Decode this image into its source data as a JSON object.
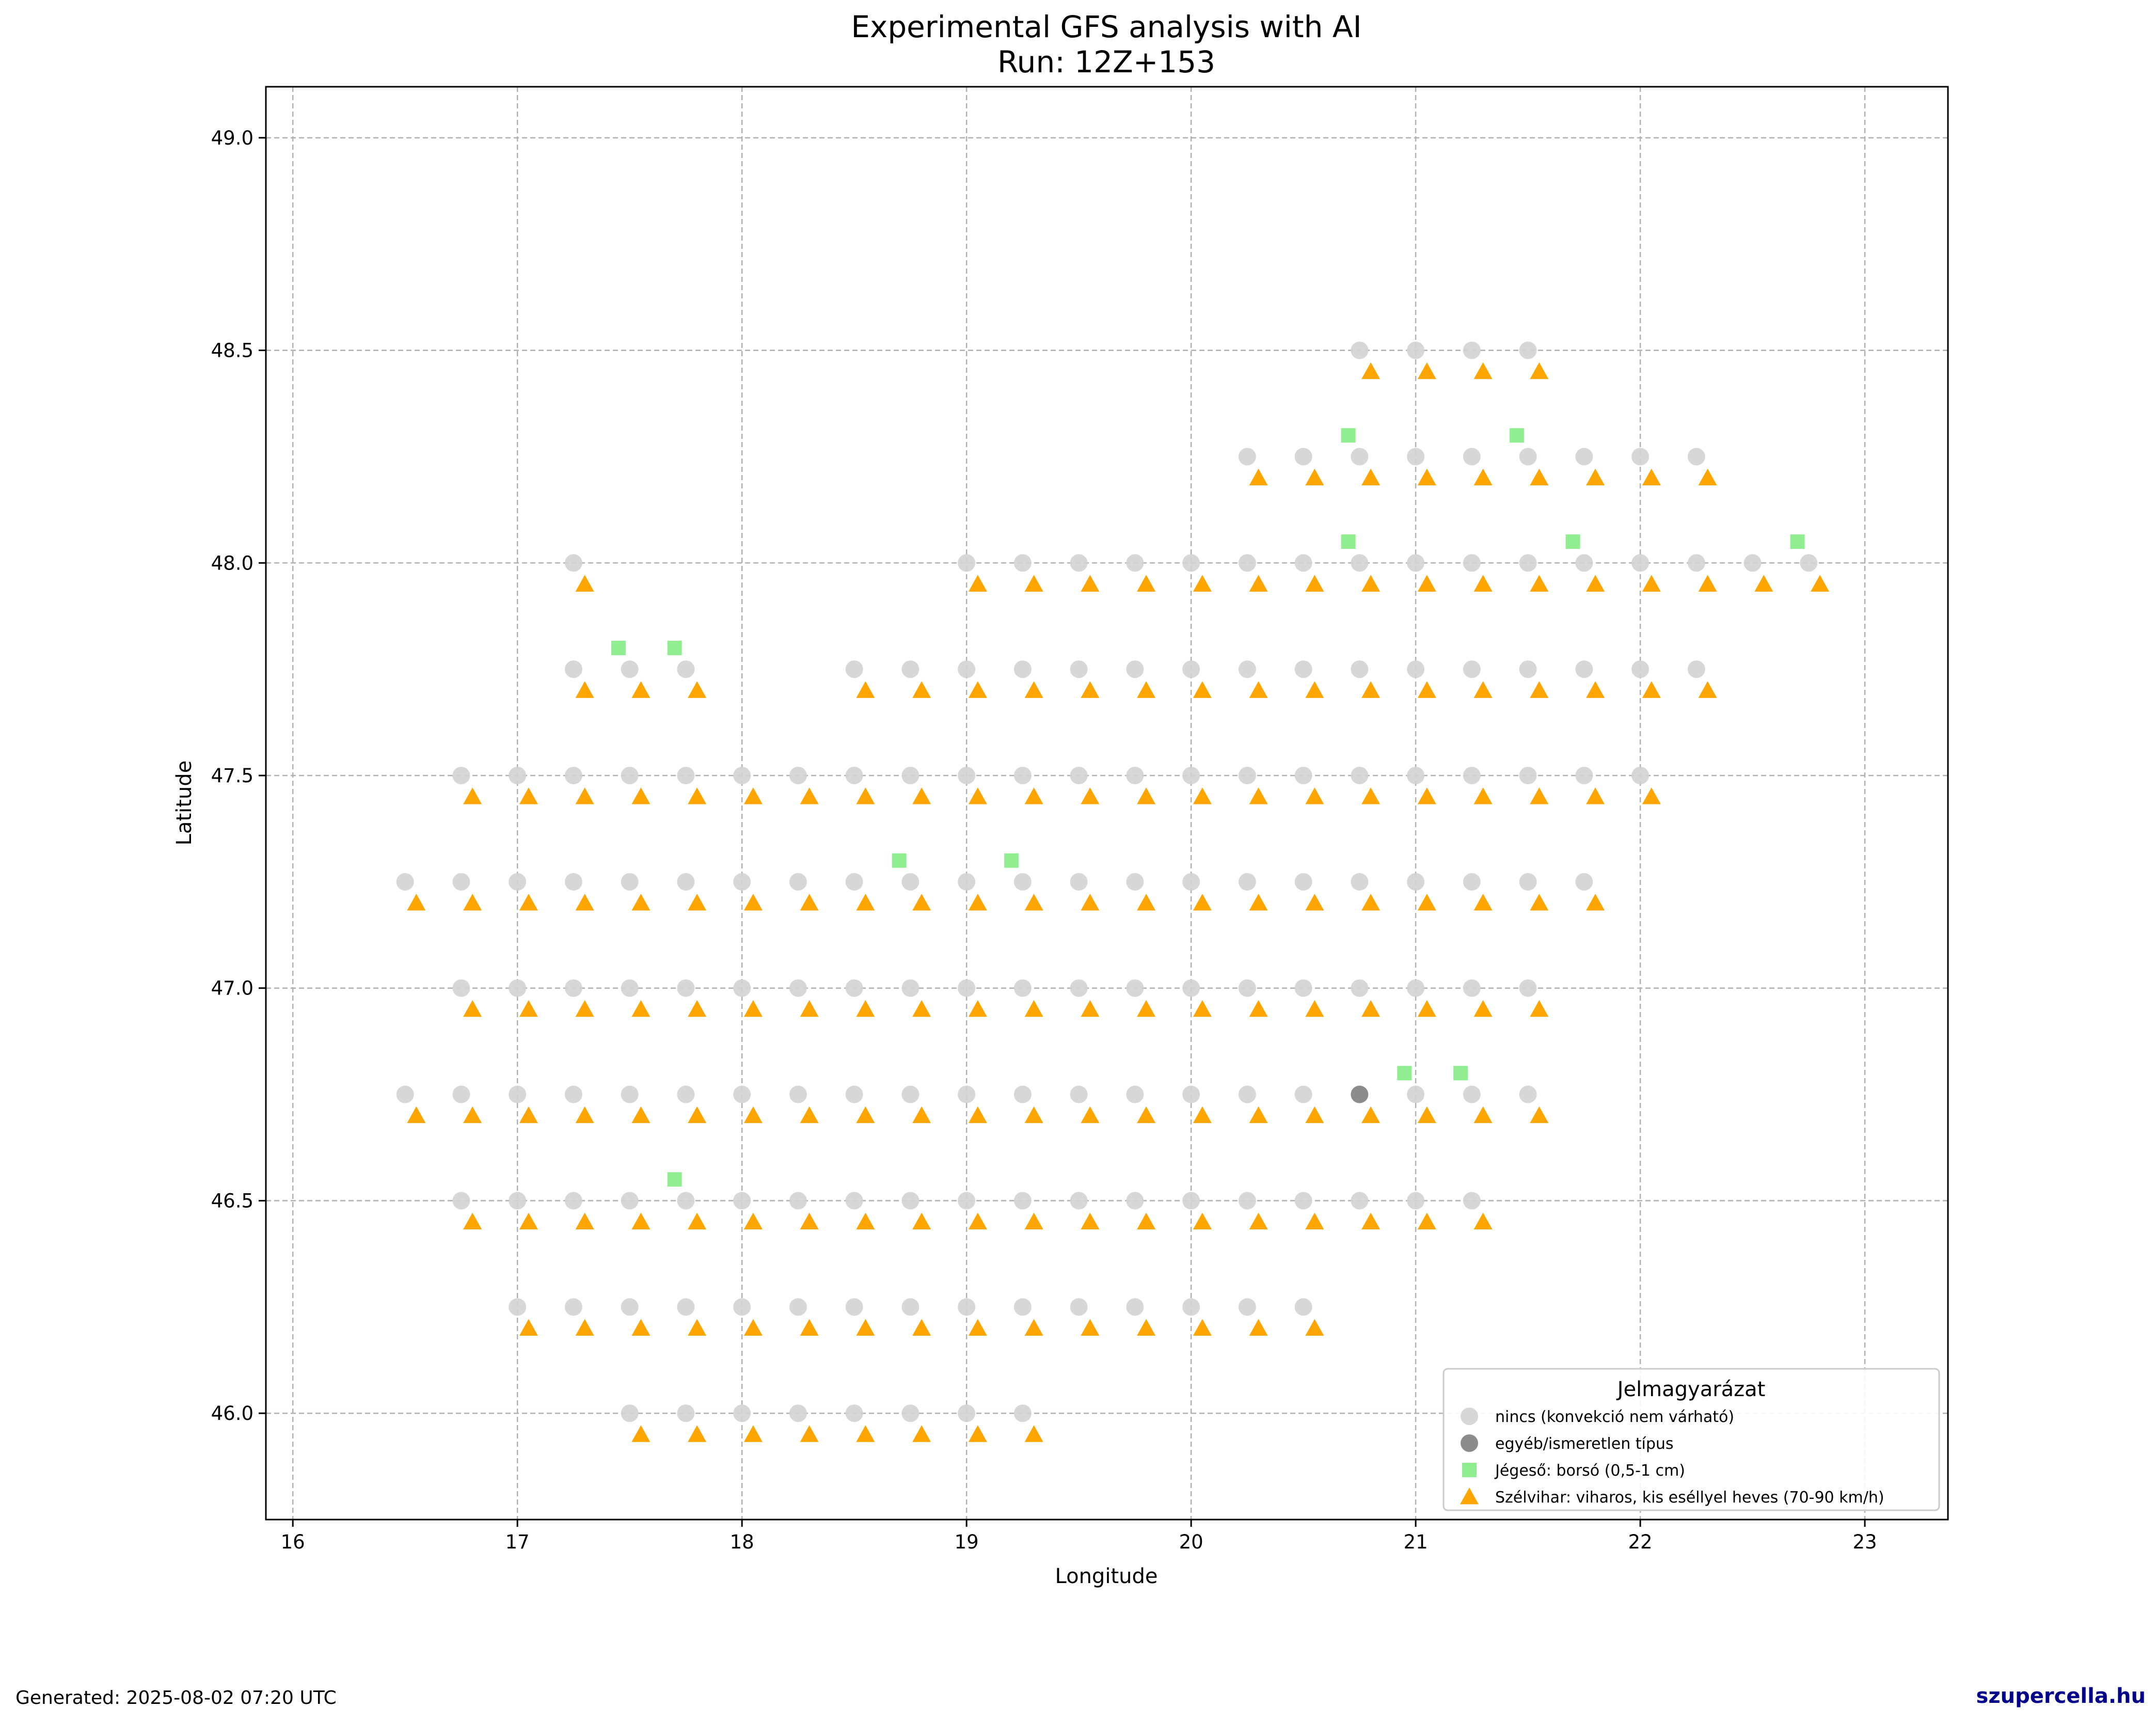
{
  "footer": {
    "generated": "Generated: 2025-08-02 07:20 UTC",
    "brand": "szupercella.hu"
  },
  "chart_data": {
    "type": "scatter",
    "title": "Experimental GFS analysis with AI",
    "subtitle": "Run: 12Z+153",
    "xlabel": "Longitude",
    "ylabel": "Latitude",
    "xlim": [
      15.88,
      23.37
    ],
    "ylim": [
      45.75,
      49.12
    ],
    "xticks": [
      "16",
      "17",
      "18",
      "19",
      "20",
      "21",
      "22",
      "23"
    ],
    "yticks": [
      "46.0",
      "46.5",
      "47.0",
      "47.5",
      "48.0",
      "48.5",
      "49.0"
    ],
    "grid": true,
    "legend": {
      "title": "Jelmagyarázat",
      "placement": "lower-right"
    },
    "colors": {
      "nincs": "#d3d3d3",
      "egyeb": "#808080",
      "jeges": "#90ee90",
      "szel": "#ffa500"
    },
    "series": [
      {
        "key": "nincs",
        "name": "nincs (konvekció nem várható)",
        "marker": "circle",
        "rows": [
          {
            "lat": 48.5,
            "lons": [
              20.75,
              21.0,
              21.25,
              21.5
            ]
          },
          {
            "lat": 48.25,
            "lons": [
              20.25,
              20.5,
              20.75,
              21.0,
              21.25,
              21.5,
              21.75,
              22.0,
              22.25
            ]
          },
          {
            "lat": 48.0,
            "lons": [
              17.25,
              19.0,
              19.25,
              19.5,
              19.75,
              20.0,
              20.25,
              20.5,
              20.75,
              21.0,
              21.25,
              21.5,
              21.75,
              22.0,
              22.25,
              22.5,
              22.75
            ]
          },
          {
            "lat": 47.75,
            "lons": [
              17.25,
              17.5,
              17.75,
              18.5,
              18.75,
              19.0,
              19.25,
              19.5,
              19.75,
              20.0,
              20.25,
              20.5,
              20.75,
              21.0,
              21.25,
              21.5,
              21.75,
              22.0,
              22.25
            ]
          },
          {
            "lat": 47.5,
            "lons": [
              16.75,
              17.0,
              17.25,
              17.5,
              17.75,
              18.0,
              18.25,
              18.5,
              18.75,
              19.0,
              19.25,
              19.5,
              19.75,
              20.0,
              20.25,
              20.5,
              20.75,
              21.0,
              21.25,
              21.5,
              21.75,
              22.0
            ]
          },
          {
            "lat": 47.25,
            "lons": [
              16.5,
              16.75,
              17.0,
              17.25,
              17.5,
              17.75,
              18.0,
              18.25,
              18.5,
              18.75,
              19.0,
              19.25,
              19.5,
              19.75,
              20.0,
              20.25,
              20.5,
              20.75,
              21.0,
              21.25,
              21.5,
              21.75
            ]
          },
          {
            "lat": 47.0,
            "lons": [
              16.75,
              17.0,
              17.25,
              17.5,
              17.75,
              18.0,
              18.25,
              18.5,
              18.75,
              19.0,
              19.25,
              19.5,
              19.75,
              20.0,
              20.25,
              20.5,
              20.75,
              21.0,
              21.25,
              21.5
            ]
          },
          {
            "lat": 46.75,
            "lons": [
              16.5,
              16.75,
              17.0,
              17.25,
              17.5,
              17.75,
              18.0,
              18.25,
              18.5,
              18.75,
              19.0,
              19.25,
              19.5,
              19.75,
              20.0,
              20.25,
              20.5,
              21.0,
              21.25,
              21.5
            ]
          },
          {
            "lat": 46.5,
            "lons": [
              16.75,
              17.0,
              17.25,
              17.5,
              17.75,
              18.0,
              18.25,
              18.5,
              18.75,
              19.0,
              19.25,
              19.5,
              19.75,
              20.0,
              20.25,
              20.5,
              20.75,
              21.0,
              21.25
            ]
          },
          {
            "lat": 46.25,
            "lons": [
              17.0,
              17.25,
              17.5,
              17.75,
              18.0,
              18.25,
              18.5,
              18.75,
              19.0,
              19.25,
              19.5,
              19.75,
              20.0,
              20.25,
              20.5
            ]
          },
          {
            "lat": 46.0,
            "lons": [
              17.5,
              17.75,
              18.0,
              18.25,
              18.5,
              18.75,
              19.0,
              19.25
            ]
          }
        ]
      },
      {
        "key": "egyeb",
        "name": "egyéb/ismeretlen típus",
        "marker": "circle",
        "rows": [
          {
            "lat": 46.75,
            "lons": [
              20.75
            ]
          }
        ]
      },
      {
        "key": "jeges",
        "name": "Jégeső: borsó (0,5-1 cm)",
        "marker": "square",
        "rows": [
          {
            "lat": 48.3,
            "lons": [
              20.7,
              21.45
            ]
          },
          {
            "lat": 48.05,
            "lons": [
              20.7,
              21.7,
              22.7
            ]
          },
          {
            "lat": 47.8,
            "lons": [
              17.45,
              17.7
            ]
          },
          {
            "lat": 47.3,
            "lons": [
              18.7,
              19.2
            ]
          },
          {
            "lat": 46.8,
            "lons": [
              20.95,
              21.2
            ]
          },
          {
            "lat": 46.55,
            "lons": [
              17.7
            ]
          }
        ]
      },
      {
        "key": "szel",
        "name": "Szélvihar: viharos, kis eséllyel heves (70-90 km/h)",
        "marker": "triangle",
        "rows": [
          {
            "lat": 48.45,
            "lons": [
              20.8,
              21.05,
              21.3,
              21.55
            ]
          },
          {
            "lat": 48.2,
            "lons": [
              20.3,
              20.55,
              20.8,
              21.05,
              21.3,
              21.55,
              21.8,
              22.05,
              22.3
            ]
          },
          {
            "lat": 47.95,
            "lons": [
              17.3,
              19.05,
              19.3,
              19.55,
              19.8,
              20.05,
              20.3,
              20.55,
              20.8,
              21.05,
              21.3,
              21.55,
              21.8,
              22.05,
              22.3,
              22.55,
              22.8
            ]
          },
          {
            "lat": 47.7,
            "lons": [
              17.3,
              17.55,
              17.8,
              18.55,
              18.8,
              19.05,
              19.3,
              19.55,
              19.8,
              20.05,
              20.3,
              20.55,
              20.8,
              21.05,
              21.3,
              21.55,
              21.8,
              22.05,
              22.3
            ]
          },
          {
            "lat": 47.45,
            "lons": [
              16.8,
              17.05,
              17.3,
              17.55,
              17.8,
              18.05,
              18.3,
              18.55,
              18.8,
              19.05,
              19.3,
              19.55,
              19.8,
              20.05,
              20.3,
              20.55,
              20.8,
              21.05,
              21.3,
              21.55,
              21.8,
              22.05
            ]
          },
          {
            "lat": 47.2,
            "lons": [
              16.55,
              16.8,
              17.05,
              17.3,
              17.55,
              17.8,
              18.05,
              18.3,
              18.55,
              18.8,
              19.05,
              19.3,
              19.55,
              19.8,
              20.05,
              20.3,
              20.55,
              20.8,
              21.05,
              21.3,
              21.55,
              21.8
            ]
          },
          {
            "lat": 46.95,
            "lons": [
              16.8,
              17.05,
              17.3,
              17.55,
              17.8,
              18.05,
              18.3,
              18.55,
              18.8,
              19.05,
              19.3,
              19.55,
              19.8,
              20.05,
              20.3,
              20.55,
              20.8,
              21.05,
              21.3,
              21.55
            ]
          },
          {
            "lat": 46.7,
            "lons": [
              16.55,
              16.8,
              17.05,
              17.3,
              17.55,
              17.8,
              18.05,
              18.3,
              18.55,
              18.8,
              19.05,
              19.3,
              19.55,
              19.8,
              20.05,
              20.3,
              20.55,
              20.8,
              21.05,
              21.3,
              21.55
            ]
          },
          {
            "lat": 46.45,
            "lons": [
              16.8,
              17.05,
              17.3,
              17.55,
              17.8,
              18.05,
              18.3,
              18.55,
              18.8,
              19.05,
              19.3,
              19.55,
              19.8,
              20.05,
              20.3,
              20.55,
              20.8,
              21.05,
              21.3
            ]
          },
          {
            "lat": 46.2,
            "lons": [
              17.05,
              17.3,
              17.55,
              17.8,
              18.05,
              18.3,
              18.55,
              18.8,
              19.05,
              19.3,
              19.55,
              19.8,
              20.05,
              20.3,
              20.55
            ]
          },
          {
            "lat": 45.95,
            "lons": [
              17.55,
              17.8,
              18.05,
              18.3,
              18.55,
              18.8,
              19.05,
              19.3
            ]
          }
        ]
      }
    ]
  }
}
